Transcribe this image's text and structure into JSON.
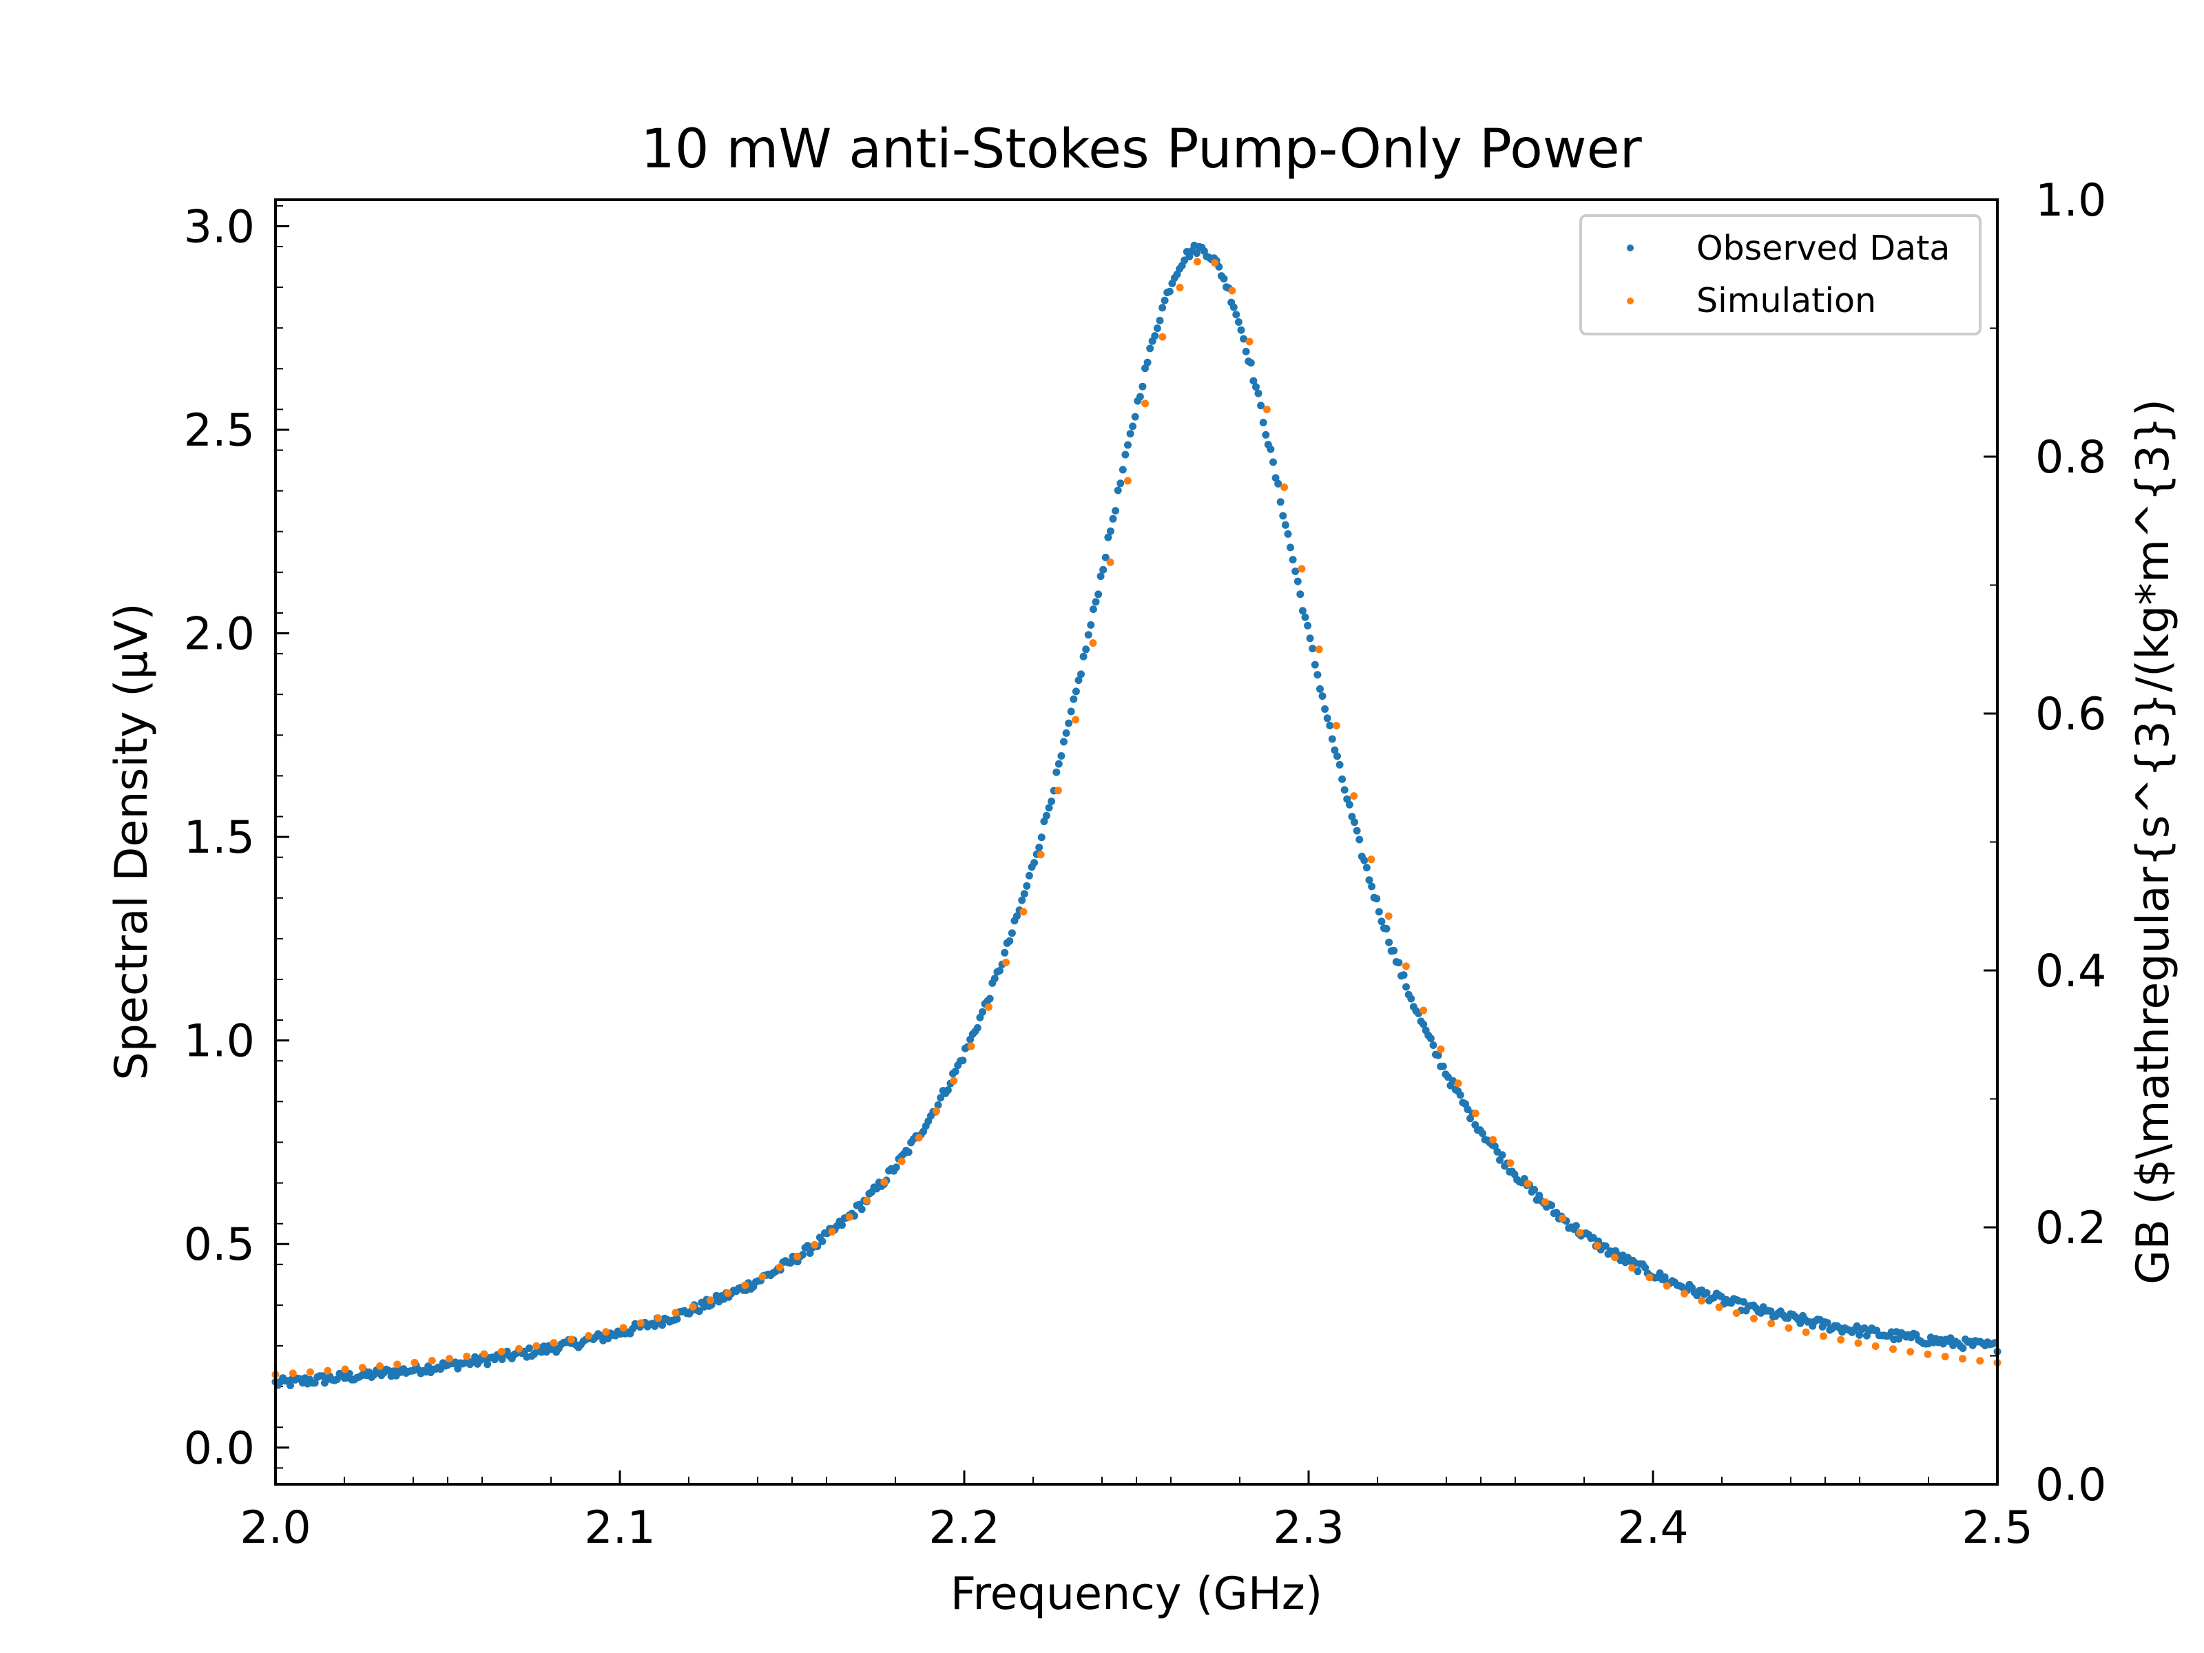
{
  "chart_data": {
    "type": "scatter",
    "title": "10 mW anti-Stokes Pump-Only Power",
    "xlabel": "Frequency (GHz)",
    "ylabel": "Spectral Density (µV)",
    "y2label": "GB ($\\mathregular{s^{3}/(kg*m^{3})",
    "xlim": [
      2.0,
      2.5
    ],
    "ylim": [
      -0.09,
      3.065
    ],
    "y2lim": [
      0.0,
      1.0
    ],
    "xticks": [
      "2.0",
      "2.1",
      "2.2",
      "2.3",
      "2.4",
      "2.5"
    ],
    "yticks": [
      "0.0",
      "0.5",
      "1.0",
      "1.5",
      "2.0",
      "2.5",
      "3.0"
    ],
    "y2ticks": [
      "0.0",
      "0.2",
      "0.4",
      "0.6",
      "0.8",
      "1.0"
    ],
    "grid": false,
    "legend_position": "upper right",
    "series": [
      {
        "name": "Observed Data",
        "color": "#1f77b4",
        "model": "lorentzian",
        "x_start": 2.0,
        "x_end": 2.5,
        "n_points": 700,
        "center": 2.268,
        "half_width": 0.045,
        "amplitude": 2.83,
        "offset": 0.08,
        "slope": 0.13,
        "noise": 0.012
      },
      {
        "name": "Simulation",
        "color": "#ff7f0e",
        "model": "lorentzian",
        "x_start": 2.0,
        "x_end": 2.5,
        "n_points": 100,
        "center": 2.27,
        "half_width": 0.046,
        "amplitude": 2.82,
        "offset": 0.1,
        "slope": 0.0,
        "noise": 0.0
      }
    ]
  }
}
